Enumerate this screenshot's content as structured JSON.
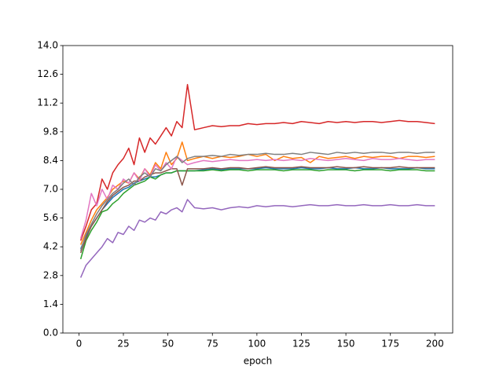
{
  "chart_data": {
    "type": "line",
    "xlabel": "epoch",
    "x": [
      1,
      4,
      7,
      10,
      13,
      16,
      19,
      22,
      25,
      28,
      31,
      34,
      37,
      40,
      43,
      46,
      49,
      52,
      55,
      58,
      61,
      65,
      70,
      75,
      80,
      85,
      90,
      95,
      100,
      105,
      110,
      115,
      120,
      125,
      130,
      135,
      140,
      145,
      150,
      155,
      160,
      165,
      170,
      175,
      180,
      185,
      190,
      195,
      200
    ],
    "series": [
      {
        "color": "#1f77b4",
        "values": [
          4.1,
          4.7,
          5.2,
          5.6,
          6.0,
          6.3,
          6.6,
          6.8,
          7.0,
          7.1,
          7.3,
          7.4,
          7.5,
          7.6,
          7.6,
          7.7,
          7.8,
          7.8,
          7.9,
          7.9,
          7.9,
          7.9,
          7.95,
          8.0,
          7.95,
          8.0,
          8.0,
          8.0,
          8.0,
          8.05,
          8.0,
          8.0,
          8.0,
          8.05,
          8.0,
          8.0,
          8.05,
          8.0,
          8.0,
          8.05,
          8.0,
          8.0,
          8.05,
          8.0,
          8.0,
          8.0,
          8.05,
          8.0,
          8.0
        ]
      },
      {
        "color": "#ff7f0e",
        "values": [
          4.3,
          4.9,
          5.5,
          6.0,
          6.3,
          6.6,
          7.0,
          7.2,
          7.4,
          7.3,
          7.8,
          7.5,
          8.0,
          7.7,
          8.3,
          8.0,
          8.8,
          8.2,
          8.5,
          9.3,
          8.4,
          8.5,
          8.6,
          8.5,
          8.6,
          8.55,
          8.6,
          8.7,
          8.6,
          8.7,
          8.4,
          8.6,
          8.5,
          8.55,
          8.3,
          8.6,
          8.5,
          8.55,
          8.6,
          8.5,
          8.6,
          8.55,
          8.6,
          8.6,
          8.5,
          8.6,
          8.6,
          8.55,
          8.6
        ]
      },
      {
        "color": "#2ca02c",
        "values": [
          3.6,
          4.5,
          5.0,
          5.4,
          5.9,
          6.0,
          6.3,
          6.5,
          6.8,
          7.0,
          7.2,
          7.3,
          7.4,
          7.6,
          7.5,
          7.7,
          7.8,
          7.8,
          7.9,
          7.9,
          7.9,
          7.9,
          7.9,
          7.95,
          7.9,
          7.95,
          7.95,
          7.9,
          7.95,
          7.95,
          7.95,
          7.9,
          7.95,
          7.95,
          7.95,
          7.9,
          7.95,
          7.95,
          7.95,
          7.9,
          7.95,
          7.95,
          7.95,
          7.9,
          7.95,
          7.95,
          7.95,
          7.9,
          7.9
        ]
      },
      {
        "color": "#d62728",
        "values": [
          4.5,
          5.2,
          6.0,
          6.3,
          7.5,
          7.0,
          7.8,
          8.2,
          8.5,
          9.0,
          8.2,
          9.5,
          8.8,
          9.5,
          9.2,
          9.6,
          10.0,
          9.6,
          10.3,
          10.0,
          12.1,
          9.9,
          10.0,
          10.1,
          10.05,
          10.1,
          10.1,
          10.2,
          10.15,
          10.2,
          10.2,
          10.25,
          10.2,
          10.3,
          10.25,
          10.2,
          10.3,
          10.25,
          10.3,
          10.25,
          10.3,
          10.3,
          10.25,
          10.3,
          10.35,
          10.3,
          10.3,
          10.25,
          10.2
        ]
      },
      {
        "color": "#9467bd",
        "values": [
          2.7,
          3.3,
          3.6,
          3.9,
          4.2,
          4.6,
          4.4,
          4.9,
          4.8,
          5.2,
          5.0,
          5.5,
          5.4,
          5.6,
          5.5,
          5.9,
          5.8,
          6.0,
          6.1,
          5.9,
          6.5,
          6.1,
          6.05,
          6.1,
          6.0,
          6.1,
          6.15,
          6.1,
          6.2,
          6.15,
          6.2,
          6.2,
          6.15,
          6.2,
          6.25,
          6.2,
          6.2,
          6.25,
          6.2,
          6.2,
          6.25,
          6.2,
          6.2,
          6.25,
          6.2,
          6.2,
          6.25,
          6.2,
          6.2
        ]
      },
      {
        "color": "#8c564b",
        "values": [
          3.9,
          4.6,
          5.2,
          5.6,
          6.0,
          6.4,
          6.7,
          6.9,
          7.1,
          7.2,
          7.4,
          7.4,
          7.6,
          7.7,
          7.8,
          7.8,
          7.9,
          8.0,
          8.0,
          7.2,
          8.0,
          8.0,
          8.0,
          8.05,
          8.0,
          8.05,
          8.05,
          8.0,
          8.05,
          8.1,
          8.05,
          8.05,
          8.05,
          8.1,
          8.05,
          8.05,
          8.05,
          8.1,
          8.05,
          8.05,
          8.1,
          8.05,
          8.05,
          8.05,
          8.1,
          8.05,
          8.05,
          8.05,
          8.05
        ]
      },
      {
        "color": "#e377c2",
        "values": [
          4.6,
          5.5,
          6.8,
          6.2,
          7.0,
          6.5,
          7.2,
          7.0,
          7.5,
          7.3,
          7.8,
          7.4,
          8.0,
          7.6,
          8.2,
          7.9,
          8.3,
          8.0,
          8.6,
          8.4,
          8.2,
          8.3,
          8.4,
          8.35,
          8.4,
          8.45,
          8.4,
          8.4,
          8.45,
          8.4,
          8.45,
          8.4,
          8.45,
          8.4,
          8.5,
          8.45,
          8.4,
          8.45,
          8.5,
          8.45,
          8.4,
          8.5,
          8.45,
          8.45,
          8.5,
          8.45,
          8.4,
          8.45,
          8.45
        ]
      },
      {
        "color": "#7f7f7f",
        "values": [
          4.0,
          4.8,
          5.3,
          5.8,
          6.2,
          6.5,
          6.8,
          7.0,
          7.3,
          7.5,
          7.2,
          7.6,
          7.8,
          7.6,
          8.0,
          7.9,
          8.2,
          8.4,
          8.6,
          8.3,
          8.5,
          8.6,
          8.6,
          8.65,
          8.6,
          8.7,
          8.65,
          8.7,
          8.7,
          8.75,
          8.7,
          8.7,
          8.75,
          8.7,
          8.8,
          8.75,
          8.7,
          8.8,
          8.75,
          8.8,
          8.75,
          8.8,
          8.8,
          8.75,
          8.8,
          8.8,
          8.75,
          8.8,
          8.8
        ]
      }
    ],
    "xlim": [
      -9,
      210
    ],
    "xticks": [
      0,
      25,
      50,
      75,
      100,
      125,
      150,
      175,
      200
    ],
    "ylim": [
      0,
      14
    ],
    "yticks": [
      {
        "value": 0,
        "label": "0.0"
      },
      1.4,
      2.8,
      4.2,
      5.6,
      {
        "value": 7,
        "label": "7.0"
      },
      8.4,
      9.8,
      11.2,
      12.6,
      {
        "value": 14,
        "label": "14.0"
      }
    ]
  }
}
